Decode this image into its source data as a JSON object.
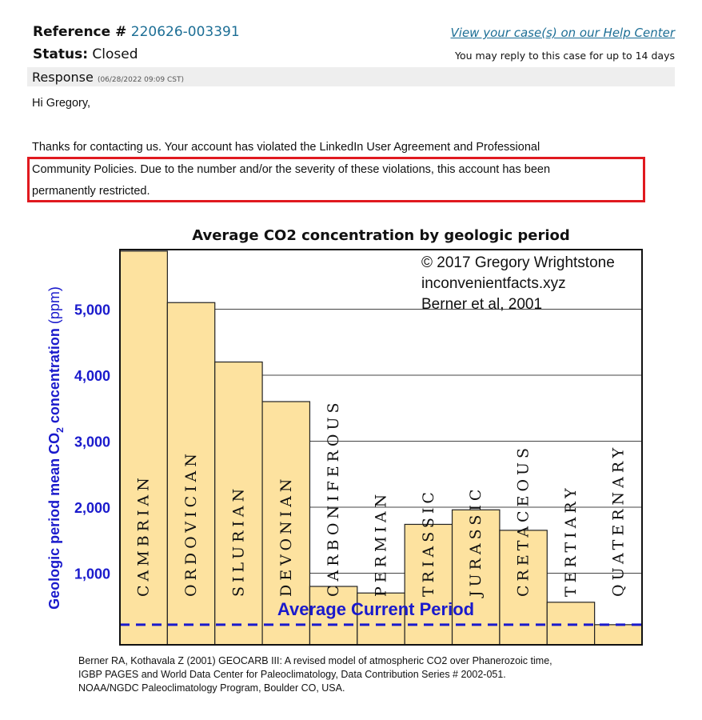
{
  "header": {
    "reference_label": "Reference #",
    "reference_number": "220626-003391",
    "status_label": "Status:",
    "status_value": "Closed",
    "view_cases_link": "View your case(s) on our Help Center",
    "reply_note": "You may reply to this case for up to 14 days"
  },
  "response": {
    "label": "Response",
    "timestamp": "(06/28/2022 09:09 CST)"
  },
  "message": {
    "greeting": "Hi Gregory,",
    "line1": "Thanks for contacting us. Your account has violated the LinkedIn User Agreement and Professional",
    "line2": "Community Policies. Due to the number and/or the severity of these violations, this account has been",
    "line3": "permanently restricted."
  },
  "colors": {
    "link": "#1c6e95",
    "highlight_border": "#e0191f",
    "bar_fill": "#fde29f",
    "axis_blue": "#1a1acc"
  },
  "chart_data": {
    "type": "bar",
    "title": "Average CO2 concentration by geologic period",
    "ylabel_parts": [
      "Geologic period mean CO",
      "2",
      " concentration ",
      "(ppm)"
    ],
    "categories": [
      "CAMBRIAN",
      "ORDOVICIAN",
      "SILURIAN",
      "DEVONIAN",
      "CARBONIFEROUS",
      "PERMIAN",
      "TRIASSIC",
      "JURASSIC",
      "CRETACEOUS",
      "TERTIARY",
      "QUATERNARY"
    ],
    "values": [
      5880,
      5100,
      4200,
      3600,
      800,
      700,
      1740,
      1960,
      1650,
      560,
      220
    ],
    "ylim": [
      0,
      6000
    ],
    "yticks": [
      "1,000",
      "2,000",
      "3,000",
      "4,000",
      "5,000"
    ],
    "ytick_values": [
      1000,
      2000,
      3000,
      4000,
      5000
    ],
    "grid": "horizontal",
    "reference_line": {
      "label": "Average Current Period",
      "value": 220
    },
    "annotation": [
      "© 2017 Gregory Wrightstone",
      "inconvenientfacts.xyz",
      "Berner et al, 2001"
    ],
    "source": [
      "Berner RA, Kothavala Z (2001) GEOCARB III: A revised model of atmospheric CO2 over Phanerozoic time,",
      "IGBP PAGES and World Data Center for Paleoclimatology, Data Contribution Series # 2002-051.",
      "NOAA/NGDC Paleoclimatology Program, Boulder CO, USA."
    ]
  }
}
